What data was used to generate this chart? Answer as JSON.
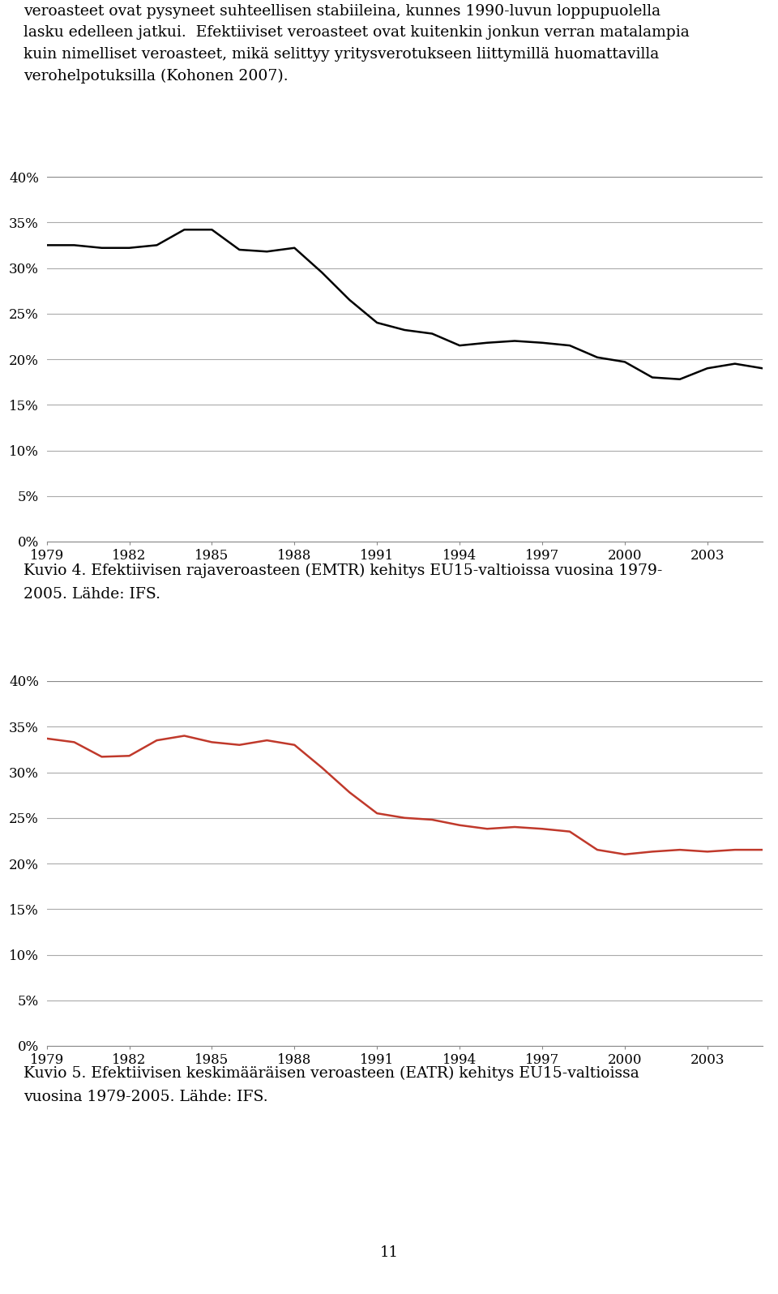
{
  "text_top_line1": "veroasteet ovat pysyneet suhteellisen stabiileina, kunnes 1990-luvun loppupuolella",
  "text_top_line2": "lasku edelleen jatkui.  Efektiiviset veroasteet ovat kuitenkin jonkun verran matalampia",
  "text_top_line3": "kuin nimelliset veroasteet, mikä selittyy yritysverotukseen liittymillä huomattavilla",
  "text_top_line4": "verohelpotuksilla (Kohonen 2007).",
  "caption1_line1": "Kuvio 4. Efektiivisen rajaveroasteen (EMTR) kehitys EU15-valtioissa vuosina 1979-",
  "caption1_line2": "2005. Lähde: IFS.",
  "caption2_line1": "Kuvio 5. Efektiivisen keskimääräisen veroasteen (EATR) kehitys EU15-valtioissa",
  "caption2_line2": "vuosina 1979-2005. Lähde: IFS.",
  "page_number": "11",
  "chart1_years": [
    1979,
    1980,
    1981,
    1982,
    1983,
    1984,
    1985,
    1986,
    1987,
    1988,
    1989,
    1990,
    1991,
    1992,
    1993,
    1994,
    1995,
    1996,
    1997,
    1998,
    1999,
    2000,
    2001,
    2002,
    2003,
    2004,
    2005
  ],
  "chart1_values": [
    0.325,
    0.325,
    0.322,
    0.322,
    0.325,
    0.342,
    0.342,
    0.32,
    0.318,
    0.322,
    0.295,
    0.265,
    0.24,
    0.232,
    0.228,
    0.215,
    0.218,
    0.22,
    0.218,
    0.215,
    0.202,
    0.197,
    0.18,
    0.178,
    0.19,
    0.195,
    0.19
  ],
  "chart1_color": "#000000",
  "chart2_years": [
    1979,
    1980,
    1981,
    1982,
    1983,
    1984,
    1985,
    1986,
    1987,
    1988,
    1989,
    1990,
    1991,
    1992,
    1993,
    1994,
    1995,
    1996,
    1997,
    1998,
    1999,
    2000,
    2001,
    2002,
    2003,
    2004,
    2005
  ],
  "chart2_values": [
    0.337,
    0.333,
    0.317,
    0.318,
    0.335,
    0.34,
    0.333,
    0.33,
    0.335,
    0.33,
    0.305,
    0.278,
    0.255,
    0.25,
    0.248,
    0.242,
    0.238,
    0.24,
    0.238,
    0.235,
    0.215,
    0.21,
    0.213,
    0.215,
    0.213,
    0.215,
    0.215
  ],
  "chart2_color": "#c0392b",
  "ytick_labels": [
    "0%",
    "5%",
    "10%",
    "15%",
    "20%",
    "25%",
    "30%",
    "35%",
    "40%"
  ],
  "ytick_values": [
    0.0,
    0.05,
    0.1,
    0.15,
    0.2,
    0.25,
    0.3,
    0.35,
    0.4
  ],
  "xtick_labels": [
    "1979",
    "1982",
    "1985",
    "1988",
    "1991",
    "1994",
    "1997",
    "2000",
    "2003"
  ],
  "xtick_values": [
    1979,
    1982,
    1985,
    1988,
    1991,
    1994,
    1997,
    2000,
    2003
  ],
  "ylim": [
    0.0,
    0.4
  ],
  "xlim": [
    1979,
    2005
  ],
  "bg_color": "#ffffff",
  "grid_color": "#aaaaaa",
  "line_width": 1.8,
  "text_fontsize": 13.5,
  "caption_fontsize": 13.5,
  "tick_fontsize": 12,
  "page_fontsize": 13
}
